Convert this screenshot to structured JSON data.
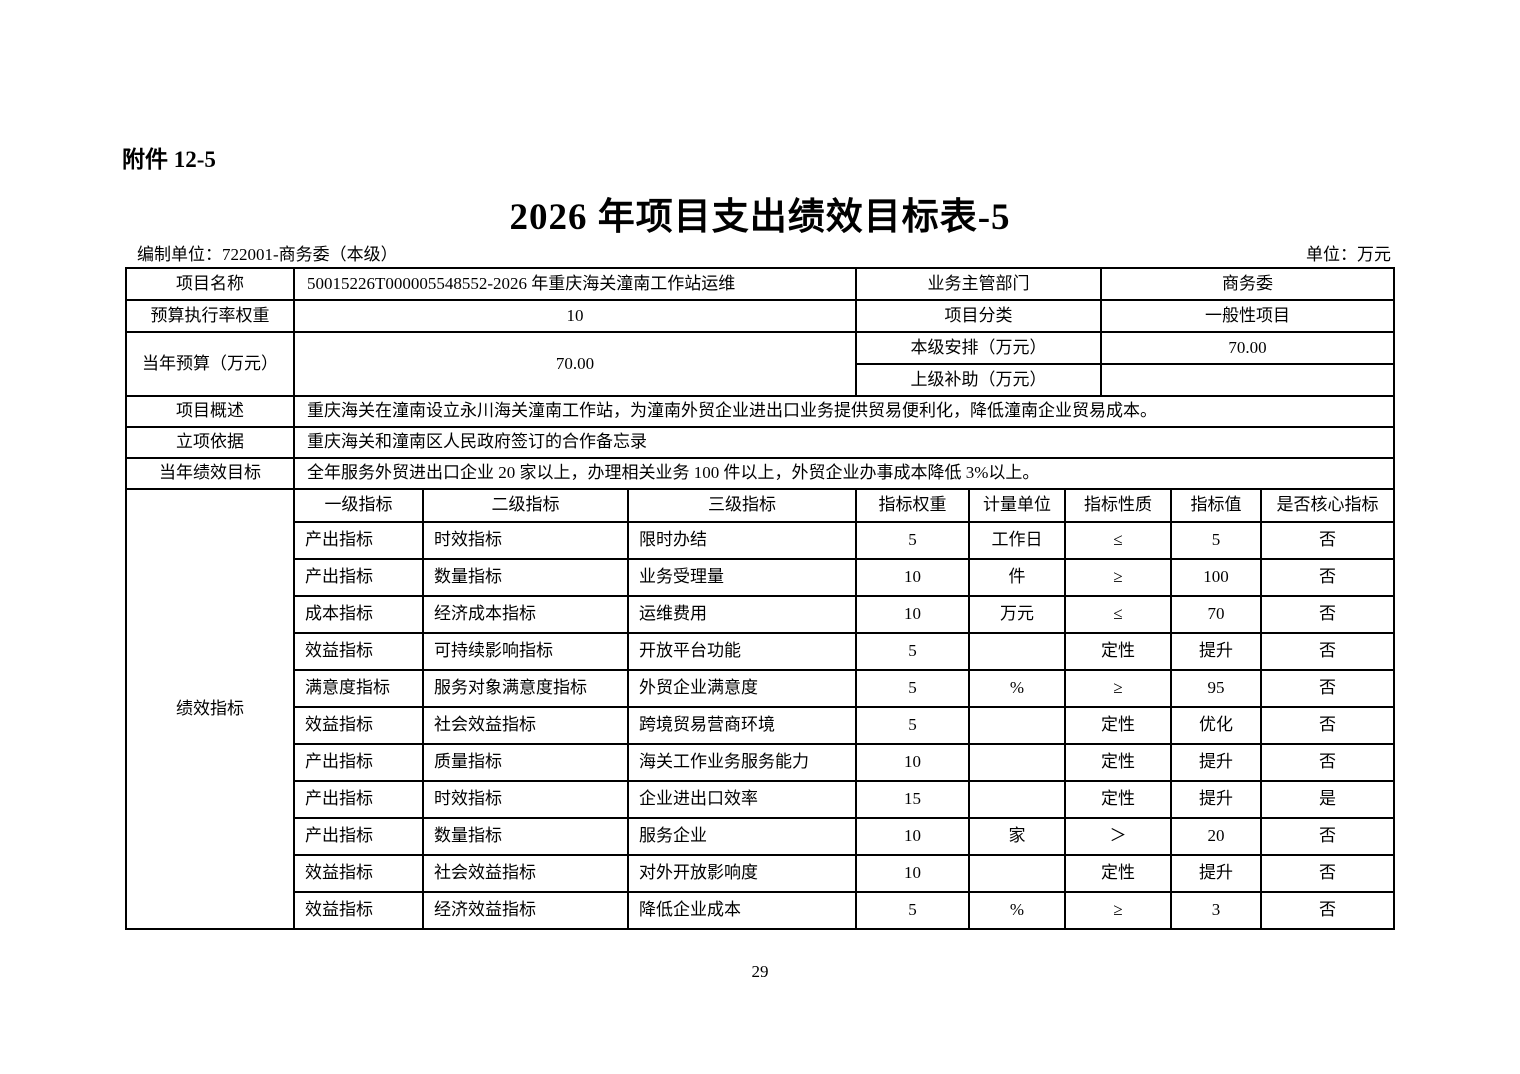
{
  "page": {
    "attachment": "附件 12-5",
    "title": "2026 年项目支出绩效目标表-5",
    "prepared_by": "编制单位：722001-商务委（本级）",
    "unit": "单位：万元",
    "page_number": "29"
  },
  "info": {
    "project_name_label": "项目名称",
    "project_name": "50015226T000005548552-2026 年重庆海关潼南工作站运维",
    "dept_label": "业务主管部门",
    "dept": "商务委",
    "budget_rate_label": "预算执行率权重",
    "budget_rate": "10",
    "category_label": "项目分类",
    "category": "一般性项目",
    "budget_label": "当年预算（万元）",
    "budget": "70.00",
    "local_label": "本级安排（万元）",
    "local": "70.00",
    "superior_label": "上级补助（万元）",
    "superior": "",
    "overview_label": "项目概述",
    "overview": "重庆海关在潼南设立永川海关潼南工作站，为潼南外贸企业进出口业务提供贸易便利化，降低潼南企业贸易成本。",
    "basis_label": "立项依据",
    "basis": "重庆海关和潼南区人民政府签订的合作备忘录",
    "goal_label": "当年绩效目标",
    "goal": "全年服务外贸进出口企业 20 家以上，办理相关业务 100 件以上，外贸企业办事成本降低 3%以上。"
  },
  "indicators": {
    "section_label": "绩效指标",
    "headers": [
      "一级指标",
      "二级指标",
      "三级指标",
      "指标权重",
      "计量单位",
      "指标性质",
      "指标值",
      "是否核心指标"
    ],
    "rows": [
      [
        "产出指标",
        "时效指标",
        "限时办结",
        "5",
        "工作日",
        "≤",
        "5",
        "否"
      ],
      [
        "产出指标",
        "数量指标",
        "业务受理量",
        "10",
        "件",
        "≥",
        "100",
        "否"
      ],
      [
        "成本指标",
        "经济成本指标",
        "运维费用",
        "10",
        "万元",
        "≤",
        "70",
        "否"
      ],
      [
        "效益指标",
        "可持续影响指标",
        "开放平台功能",
        "5",
        "",
        "定性",
        "提升",
        "否"
      ],
      [
        "满意度指标",
        "服务对象满意度指标",
        "外贸企业满意度",
        "5",
        "%",
        "≥",
        "95",
        "否"
      ],
      [
        "效益指标",
        "社会效益指标",
        "跨境贸易营商环境",
        "5",
        "",
        "定性",
        "优化",
        "否"
      ],
      [
        "产出指标",
        "质量指标",
        "海关工作业务服务能力",
        "10",
        "",
        "定性",
        "提升",
        "否"
      ],
      [
        "产出指标",
        "时效指标",
        "企业进出口效率",
        "15",
        "",
        "定性",
        "提升",
        "是"
      ],
      [
        "产出指标",
        "数量指标",
        "服务企业",
        "10",
        "家",
        "＞",
        "20",
        "否"
      ],
      [
        "效益指标",
        "社会效益指标",
        "对外开放影响度",
        "10",
        "",
        "定性",
        "提升",
        "否"
      ],
      [
        "效益指标",
        "经济效益指标",
        "降低企业成本",
        "5",
        "%",
        "≥",
        "3",
        "否"
      ]
    ]
  }
}
